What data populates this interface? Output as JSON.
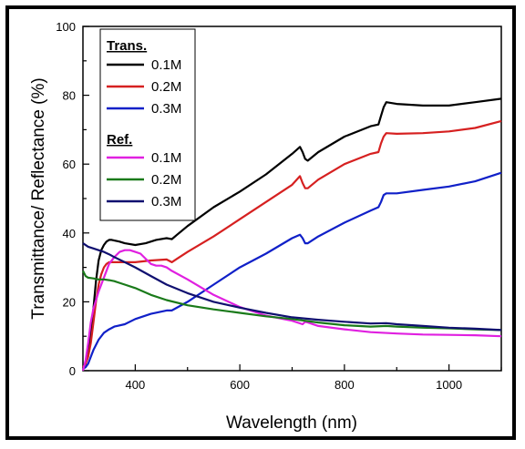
{
  "chart_data": {
    "type": "line",
    "xlabel": "Wavelength (nm)",
    "ylabel": "Transmittance/ Reflectance (%)",
    "xlim": [
      300,
      1100
    ],
    "ylim": [
      0,
      100
    ],
    "xticks": [
      400,
      600,
      800,
      1000
    ],
    "yticks": [
      0,
      20,
      40,
      60,
      80,
      100
    ],
    "grid": false,
    "legend_position": "top-left",
    "legend_groups": [
      {
        "title": "Trans.",
        "series": [
          "T-0.1M",
          "T-0.2M",
          "T-0.3M"
        ]
      },
      {
        "title": "Ref.",
        "series": [
          "R-0.1M",
          "R-0.2M",
          "R-0.3M"
        ]
      }
    ],
    "series": [
      {
        "id": "T-0.1M",
        "name": "0.1M",
        "color": "#000000",
        "x": [
          300,
          305,
          310,
          315,
          320,
          325,
          330,
          335,
          340,
          345,
          350,
          355,
          360,
          370,
          380,
          400,
          420,
          440,
          460,
          470,
          480,
          500,
          550,
          600,
          650,
          700,
          715,
          720,
          725,
          730,
          750,
          800,
          850,
          865,
          870,
          875,
          880,
          900,
          950,
          1000,
          1050,
          1100
        ],
        "y": [
          1,
          2,
          5,
          10,
          18,
          26,
          32,
          35,
          36.5,
          37.5,
          38,
          38,
          37.8,
          37.5,
          37,
          36.5,
          37,
          38,
          38.5,
          38.2,
          39.5,
          42,
          47.5,
          52,
          57,
          63,
          65,
          63.5,
          61.5,
          61,
          63.5,
          68,
          71,
          71.5,
          74,
          76.5,
          78,
          77.5,
          77,
          77,
          78,
          79
        ]
      },
      {
        "id": "T-0.2M",
        "name": "0.2M",
        "color": "#d62020",
        "x": [
          300,
          305,
          310,
          315,
          320,
          325,
          330,
          335,
          340,
          345,
          350,
          355,
          360,
          380,
          400,
          430,
          460,
          470,
          480,
          500,
          550,
          600,
          650,
          700,
          715,
          720,
          725,
          730,
          750,
          800,
          850,
          865,
          870,
          875,
          880,
          900,
          950,
          1000,
          1050,
          1100
        ],
        "y": [
          1,
          2,
          4,
          8,
          14,
          20,
          25,
          28,
          30,
          31,
          31.5,
          31.5,
          31.5,
          31.5,
          31.5,
          32,
          32.3,
          31.5,
          32.5,
          34.5,
          39,
          44,
          49,
          54,
          56.5,
          54.5,
          53,
          53,
          55.5,
          60,
          63,
          63.5,
          66,
          68,
          69,
          68.8,
          69,
          69.5,
          70.5,
          72.5
        ]
      },
      {
        "id": "T-0.3M",
        "name": "0.3M",
        "color": "#1020c8",
        "x": [
          300,
          305,
          310,
          315,
          320,
          330,
          340,
          350,
          360,
          380,
          400,
          430,
          460,
          470,
          500,
          550,
          600,
          650,
          700,
          715,
          720,
          725,
          730,
          750,
          800,
          850,
          865,
          870,
          875,
          880,
          900,
          950,
          1000,
          1050,
          1100
        ],
        "y": [
          0.5,
          1,
          2,
          4,
          6,
          9,
          11,
          12,
          12.8,
          13.5,
          15,
          16.5,
          17.5,
          17.5,
          20,
          25,
          30,
          34,
          38.5,
          39.5,
          38.5,
          37,
          37,
          39,
          43,
          46.5,
          47.5,
          49,
          51,
          51.5,
          51.5,
          52.5,
          53.5,
          55,
          57.5
        ]
      },
      {
        "id": "R-0.1M",
        "name": "0.1M",
        "color": "#e020e0",
        "x": [
          300,
          305,
          310,
          315,
          320,
          330,
          340,
          350,
          360,
          370,
          380,
          390,
          400,
          410,
          420,
          430,
          440,
          450,
          460,
          470,
          500,
          550,
          600,
          650,
          700,
          720,
          725,
          730,
          750,
          800,
          850,
          900,
          950,
          1000,
          1050,
          1100
        ],
        "y": [
          0,
          3,
          8,
          14,
          18,
          23,
          27,
          31,
          33,
          34.5,
          35,
          35,
          34.5,
          34,
          32.5,
          31,
          30.5,
          30.5,
          30,
          29,
          26.5,
          22,
          18.5,
          16,
          14.5,
          13.5,
          14.2,
          14,
          13,
          12,
          11.2,
          10.8,
          10.5,
          10.4,
          10.3,
          10
        ]
      },
      {
        "id": "R-0.2M",
        "name": "0.2M",
        "color": "#1a7a1a",
        "x": [
          300,
          305,
          310,
          320,
          330,
          340,
          350,
          360,
          380,
          400,
          430,
          460,
          500,
          550,
          600,
          650,
          700,
          750,
          800,
          850,
          880,
          900,
          950,
          1000,
          1050,
          1100
        ],
        "y": [
          29,
          27.5,
          27,
          26.8,
          26.5,
          26.5,
          26.3,
          26,
          25,
          24,
          22,
          20.5,
          19,
          17.8,
          16.8,
          15.8,
          15,
          14,
          13.2,
          12.8,
          13,
          12.8,
          12.5,
          12.3,
          12,
          11.8
        ]
      },
      {
        "id": "R-0.3M",
        "name": "0.3M",
        "color": "#101070",
        "x": [
          300,
          310,
          320,
          330,
          340,
          350,
          360,
          380,
          400,
          430,
          460,
          500,
          550,
          600,
          650,
          700,
          750,
          800,
          850,
          880,
          900,
          950,
          1000,
          1050,
          1100
        ],
        "y": [
          37,
          36,
          35.5,
          35,
          34.5,
          33.8,
          33,
          31.5,
          30,
          27.5,
          25,
          22.5,
          20,
          18.3,
          16.8,
          15.5,
          14.8,
          14.2,
          13.7,
          13.8,
          13.5,
          13,
          12.5,
          12.2,
          11.8
        ]
      }
    ]
  }
}
